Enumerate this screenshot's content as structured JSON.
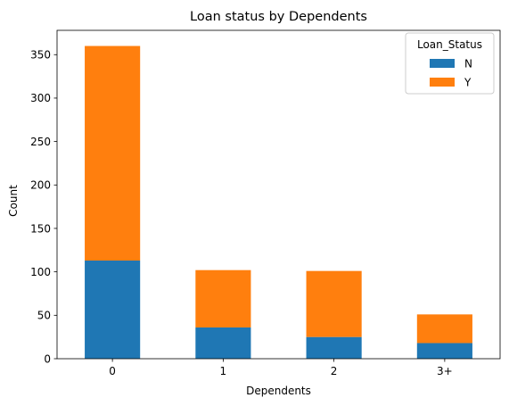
{
  "chart_data": {
    "type": "bar",
    "stacked": true,
    "title": "Loan status by Dependents",
    "xlabel": "Dependents",
    "ylabel": "Count",
    "categories": [
      "0",
      "1",
      "2",
      "3+"
    ],
    "series": [
      {
        "name": "N",
        "color": "#1f77b4",
        "values": [
          113,
          36,
          25,
          18
        ]
      },
      {
        "name": "Y",
        "color": "#ff7f0e",
        "values": [
          247,
          66,
          76,
          33
        ]
      }
    ],
    "ylim": [
      0,
      378
    ],
    "yticks": [
      0,
      50,
      100,
      150,
      200,
      250,
      300,
      350
    ],
    "grid": false,
    "legend": {
      "title": "Loan_Status",
      "position": "top-right"
    }
  }
}
